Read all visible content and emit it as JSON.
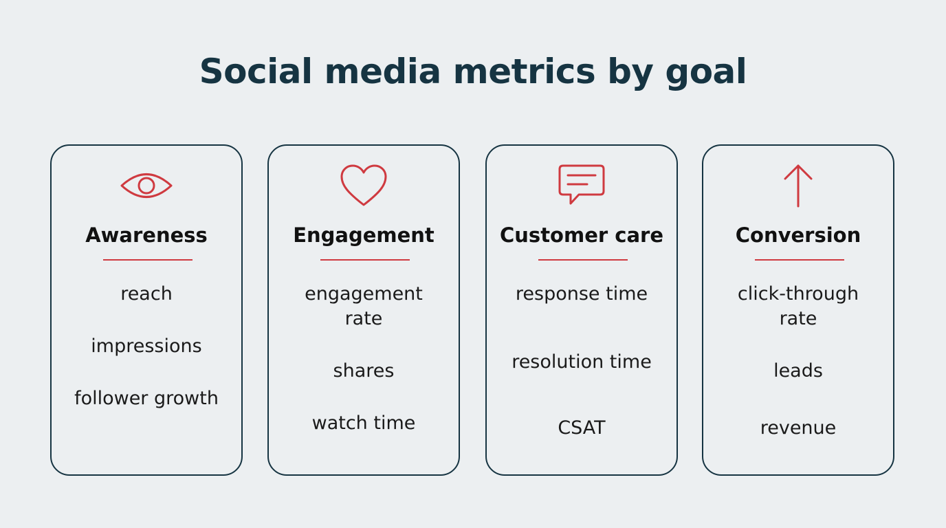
{
  "title": "Social media metrics by goal",
  "accent_color": "#cf3a40",
  "ink_color": "#163442",
  "cards": [
    {
      "icon": "eye-icon",
      "heading": "Awareness",
      "metrics": [
        "reach",
        "impressions",
        "follower growth"
      ]
    },
    {
      "icon": "heart-icon",
      "heading": "Engagement",
      "metrics": [
        "engagement rate",
        "shares",
        "watch time"
      ]
    },
    {
      "icon": "chat-bubble-icon",
      "heading": "Customer care",
      "metrics": [
        "response time",
        "resolution time",
        "CSAT"
      ]
    },
    {
      "icon": "arrow-up-icon",
      "heading": "Conversion",
      "metrics": [
        "click-through rate",
        "leads",
        "revenue"
      ]
    }
  ]
}
